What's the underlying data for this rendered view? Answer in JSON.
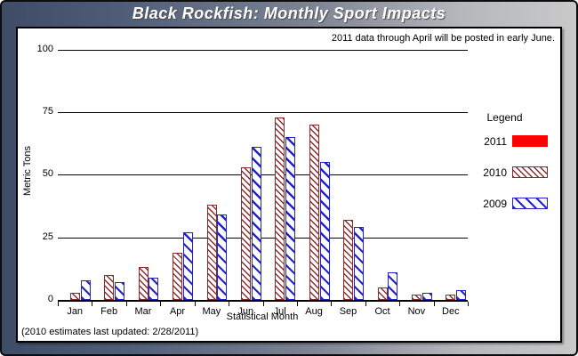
{
  "window": {
    "title": "Black Rockfish: Monthly Sport Impacts"
  },
  "notes": {
    "top_right": "2011 data through April will be posted in early June.",
    "bottom_left": "(2010 estimates last updated: 2/28/2011)"
  },
  "legend": {
    "title": "Legend"
  },
  "colors": {
    "frame_dark": "#3E4C68",
    "frame_light": "#C9C9C9",
    "series_2011": "#FF0000",
    "series_2010": "#8B2A2A",
    "series_2009": "#2323CC"
  },
  "chart_data": {
    "type": "bar",
    "title": "Black Rockfish: Monthly Sport Impacts",
    "xlabel": "Statistical Month",
    "ylabel": "Metric Tons",
    "ylim": [
      0,
      100
    ],
    "yticks": [
      0,
      25,
      50,
      75,
      100
    ],
    "grid": true,
    "legend_position": "right",
    "categories": [
      "Jan",
      "Feb",
      "Mar",
      "Apr",
      "May",
      "Jun",
      "Jul",
      "Aug",
      "Sep",
      "Oct",
      "Nov",
      "Dec"
    ],
    "series": [
      {
        "name": "2011",
        "color": "#FF0000",
        "hatch": "none",
        "values": [
          0,
          0,
          0,
          0,
          0,
          0,
          0,
          0,
          0,
          0,
          0,
          0
        ]
      },
      {
        "name": "2010",
        "color": "#8B2A2A",
        "hatch": "dense",
        "values": [
          3,
          10,
          13,
          19,
          38,
          53,
          73,
          70,
          32,
          5,
          2,
          2
        ]
      },
      {
        "name": "2009",
        "color": "#2323CC",
        "hatch": "wide",
        "values": [
          8,
          7,
          9,
          27,
          34,
          61,
          65,
          55,
          29,
          11,
          3,
          4
        ]
      }
    ]
  }
}
